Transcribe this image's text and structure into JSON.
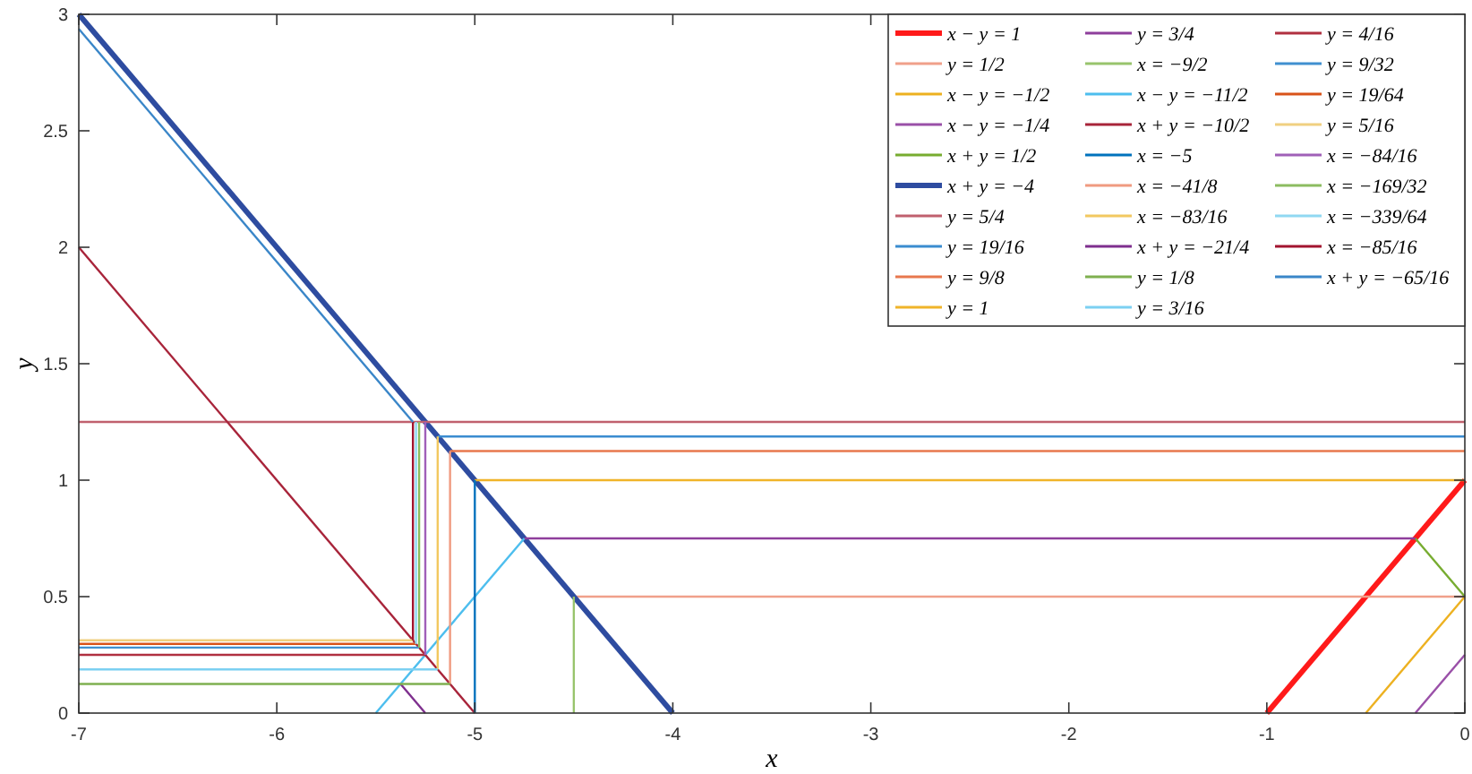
{
  "chart_data": {
    "type": "line",
    "xlabel": "x",
    "ylabel": "y",
    "xlim": [
      -7,
      0
    ],
    "ylim": [
      0,
      3
    ],
    "xticks": [
      -7,
      -6,
      -5,
      -4,
      -3,
      -2,
      -1,
      0
    ],
    "yticks": [
      0,
      0.5,
      1,
      1.5,
      2,
      2.5,
      3
    ],
    "grid": false,
    "legend": "top right",
    "marker": "none",
    "line_style": "solid",
    "series": [
      {
        "name": "x − y = 1",
        "color": "#ff1a1a",
        "x": [
          -1,
          0
        ],
        "values": [
          0,
          1
        ]
      },
      {
        "name": "y = 1/2",
        "color": "#f0a08a",
        "x": [
          -4.5,
          0
        ],
        "values": [
          0.5,
          0.5
        ]
      },
      {
        "name": "x − y = −1/2",
        "color": "#edb120",
        "x": [
          -0.5,
          0
        ],
        "values": [
          0,
          0.5
        ]
      },
      {
        "name": "x − y = −1/4",
        "color": "#9a50a8",
        "x": [
          -0.25,
          0
        ],
        "values": [
          0,
          0.25
        ]
      },
      {
        "name": "x + y = 1/2",
        "color": "#77ac30",
        "x": [
          -0.25,
          0
        ],
        "values": [
          0.75,
          0.5
        ]
      },
      {
        "name": "x + y = −4",
        "color": "#2e4ca0",
        "x": [
          -7,
          -4
        ],
        "values": [
          3,
          0
        ]
      },
      {
        "name": "y = 5/4",
        "color": "#c0606e",
        "x": [
          -7,
          0
        ],
        "values": [
          1.25,
          1.25
        ]
      },
      {
        "name": "y = 19/16",
        "color": "#3a8cd0",
        "x": [
          -5.1875,
          0
        ],
        "values": [
          1.1875,
          1.1875
        ]
      },
      {
        "name": "y = 9/8",
        "color": "#e8784e",
        "x": [
          -5.125,
          0
        ],
        "values": [
          1.125,
          1.125
        ]
      },
      {
        "name": "y = 1",
        "color": "#f0b42a",
        "x": [
          -5,
          0
        ],
        "values": [
          1,
          1
        ]
      },
      {
        "name": "y = 3/4",
        "color": "#8e3e9c",
        "x": [
          -4.75,
          -0.25
        ],
        "values": [
          0.75,
          0.75
        ]
      },
      {
        "name": "x = −9/2",
        "color": "#98c46c",
        "x": [
          -4.5,
          -4.5
        ],
        "values": [
          0,
          0.5
        ]
      },
      {
        "name": "x − y = −11/2",
        "color": "#4dbeee",
        "x": [
          -5.5,
          -4.75
        ],
        "values": [
          0,
          0.75
        ]
      },
      {
        "name": "x + y = −10/2",
        "color": "#a8243a",
        "x": [
          -7,
          -5
        ],
        "values": [
          2,
          0
        ]
      },
      {
        "name": "x = −5",
        "color": "#0072bd",
        "x": [
          -5,
          -5
        ],
        "values": [
          0,
          1
        ]
      },
      {
        "name": "x = −41/8",
        "color": "#f09a80",
        "x": [
          -5.125,
          -5.125
        ],
        "values": [
          0.125,
          1.125
        ]
      },
      {
        "name": "x = −83/16",
        "color": "#f2c860",
        "x": [
          -5.1875,
          -5.1875
        ],
        "values": [
          0.1875,
          1.1875
        ]
      },
      {
        "name": "x + y = −21/4",
        "color": "#7e2f8e",
        "x": [
          -5.375,
          -5.25
        ],
        "values": [
          0.125,
          0
        ]
      },
      {
        "name": "y = 1/8",
        "color": "#7fb050",
        "x": [
          -7,
          -5.125
        ],
        "values": [
          0.125,
          0.125
        ]
      },
      {
        "name": "y = 3/16",
        "color": "#7cd0f2",
        "x": [
          -7,
          -5.1875
        ],
        "values": [
          0.1875,
          0.1875
        ]
      },
      {
        "name": "y = 4/16",
        "color": "#b03040",
        "x": [
          -7,
          -5.25
        ],
        "values": [
          0.25,
          0.25
        ]
      },
      {
        "name": "y = 9/32",
        "color": "#4090d0",
        "x": [
          -7,
          -5.28125
        ],
        "values": [
          0.28125,
          0.28125
        ]
      },
      {
        "name": "y = 19/64",
        "color": "#d95319",
        "x": [
          -7,
          -5.296875
        ],
        "values": [
          0.296875,
          0.296875
        ]
      },
      {
        "name": "y = 5/16",
        "color": "#f0d080",
        "x": [
          -7,
          -5.3125
        ],
        "values": [
          0.3125,
          0.3125
        ]
      },
      {
        "name": "x = −84/16",
        "color": "#a060b8",
        "x": [
          -5.25,
          -5.25
        ],
        "values": [
          0.25,
          1.25
        ]
      },
      {
        "name": "x = −169/32",
        "color": "#8cbc60",
        "x": [
          -5.28125,
          -5.28125
        ],
        "values": [
          0.28125,
          1.25
        ]
      },
      {
        "name": "x = −339/64",
        "color": "#90d8f2",
        "x": [
          -5.296875,
          -5.296875
        ],
        "values": [
          0.296875,
          1.25
        ]
      },
      {
        "name": "x = −85/16",
        "color": "#a2142f",
        "x": [
          -5.3125,
          -5.3125
        ],
        "values": [
          0.3125,
          1.25
        ]
      },
      {
        "name": "x + y = −65/16",
        "color": "#3a86c8",
        "x": [
          -7,
          -5.3125
        ],
        "values": [
          2.9375,
          1.25
        ]
      }
    ]
  }
}
